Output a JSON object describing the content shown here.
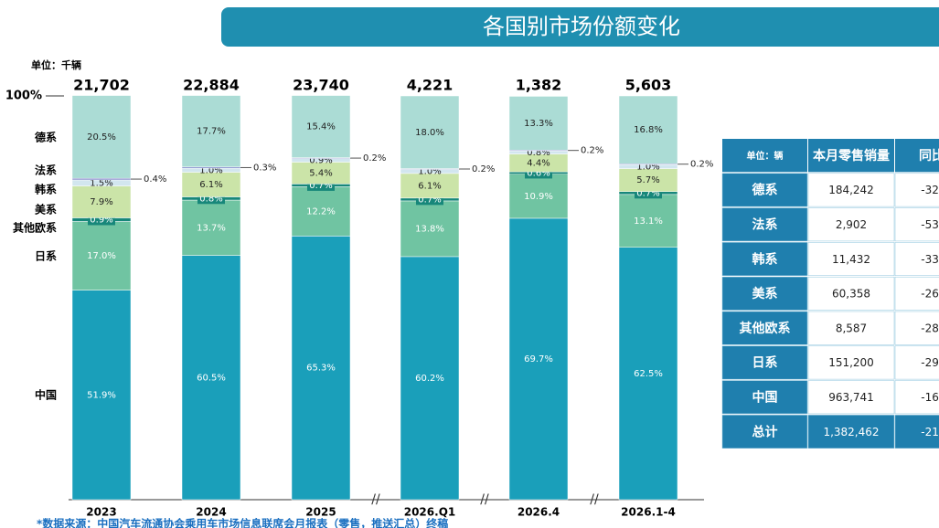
{
  "chart_data": {
    "type": "stacked_percent_bar",
    "title": "各国别市场份额变化",
    "unit": "单位：千辆",
    "categories": [
      "2023",
      "2024",
      "2025",
      "2026.Q1",
      "2026.4",
      "2026.1-4"
    ],
    "ylim": [
      0,
      100
    ],
    "yticks": [
      {
        "value": 100,
        "label": "100%"
      }
    ],
    "totals": {
      "values": [
        21702,
        22884,
        23740,
        4221,
        1382,
        5603
      ],
      "value_labels": [
        "21,702",
        "22,884",
        "23,740",
        "4,221",
        "1,382",
        "5,603"
      ]
    },
    "series": [
      {
        "name": "中国",
        "color": "#1a9fba",
        "values": [
          51.9,
          60.5,
          65.3,
          60.2,
          69.7,
          62.5
        ],
        "value_labels": [
          "51.9%",
          "60.5%",
          "65.3%",
          "60.2%",
          "69.7%",
          "62.5%"
        ]
      },
      {
        "name": "日系",
        "color": "#70c4a2",
        "values": [
          17.0,
          13.7,
          12.2,
          13.8,
          10.9,
          13.1
        ],
        "value_labels": [
          "17.0%",
          "13.7%",
          "12.2%",
          "13.8%",
          "10.9%",
          "13.1%"
        ]
      },
      {
        "name": "其他欧系",
        "color": "#17877a",
        "values": [
          0.9,
          0.8,
          0.7,
          0.7,
          0.6,
          0.7
        ],
        "value_labels": [
          "0.9%",
          "0.8%",
          "0.7%",
          "0.7%",
          "0.6%",
          "0.7%"
        ]
      },
      {
        "name": "美系",
        "color": "#cbe4a8",
        "values": [
          7.9,
          6.1,
          5.4,
          6.1,
          4.4,
          5.7
        ],
        "value_labels": [
          "7.9%",
          "6.1%",
          "5.4%",
          "6.1%",
          "4.4%",
          "5.7%"
        ]
      },
      {
        "name": "韩系",
        "color": "#d2e6ef",
        "values": [
          1.5,
          1.0,
          0.9,
          1.0,
          0.8,
          1.0
        ],
        "value_labels": [
          "1.5%",
          "1.0%",
          "0.9%",
          "1.0%",
          "0.8%",
          "1.0%"
        ]
      },
      {
        "name": "法系",
        "color": "#7e86c9",
        "values": [
          0.4,
          0.3,
          0.2,
          0.2,
          0.2,
          0.2
        ],
        "value_labels": [
          "0.4%",
          "0.3%",
          "0.2%",
          "0.2%",
          "0.2%",
          "0.2%"
        ]
      },
      {
        "name": "德系",
        "color": "#abdcd5",
        "values": [
          20.5,
          17.7,
          15.4,
          18.0,
          13.3,
          16.8
        ],
        "value_labels": [
          "20.5%",
          "17.7%",
          "15.4%",
          "18.0%",
          "13.3%",
          "16.8%"
        ]
      }
    ]
  },
  "table": {
    "header": [
      "单位：辆",
      "本月零售销量",
      "同比"
    ],
    "rows": [
      [
        "德系",
        "184,242",
        "-32."
      ],
      [
        "法系",
        "2,902",
        "-53."
      ],
      [
        "韩系",
        "11,432",
        "-33."
      ],
      [
        "美系",
        "60,358",
        "-26."
      ],
      [
        "其他欧系",
        "8,587",
        "-28."
      ],
      [
        "日系",
        "151,200",
        "-29."
      ],
      [
        "中国",
        "963,741",
        "-16."
      ],
      [
        "总计",
        "1,382,462",
        "-21."
      ]
    ]
  },
  "footnote": "*数据来源：中国汽车流通协会乘用车市场信息联席会月报表（零售，推送汇总）终稿"
}
